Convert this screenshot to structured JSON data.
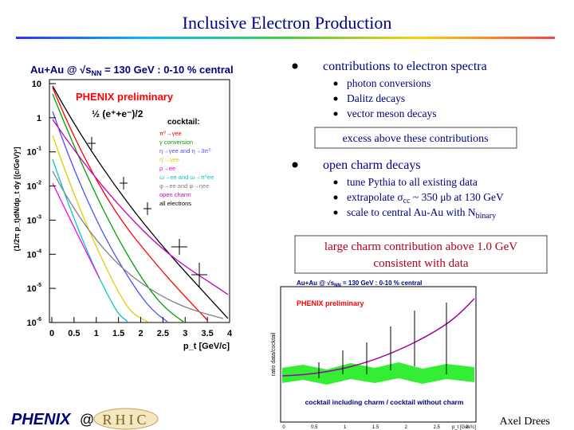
{
  "title": "Inclusive Electron Production",
  "left_plot": {
    "header": "Au+Au @ √s",
    "header_sub": "NN",
    "header_rest": " = 130 GeV : 0-10 % central",
    "label": "PHENIX preliminary",
    "data_label": "½ (e⁺+e⁻)/2",
    "cocktail_title": "cocktail:",
    "legend": [
      {
        "text": "π⁰→γee",
        "color": "#ff0000"
      },
      {
        "text": "γ conversion",
        "color": "#00a000"
      },
      {
        "text": "η→γee and η→3π⁰",
        "color": "#5050ff"
      },
      {
        "text": "η′→γee",
        "color": "#e0d000"
      },
      {
        "text": "ρ→ee",
        "color": "#ff00ff"
      },
      {
        "text": "ω→ee and ω→π⁰ee",
        "color": "#00c8c8"
      },
      {
        "text": "φ→ee and φ→ηee",
        "color": "#808080"
      },
      {
        "text": "open charm",
        "color": "#c000c0"
      },
      {
        "text": "all electrons",
        "color": "#000000"
      }
    ],
    "y_axis_label": "(1/2π p_t)dN/dp_t dy [(c/GeV)²]",
    "x_axis_label": "p_t [GeV/c]",
    "yticks": [
      {
        "text": "10",
        "sup": ""
      },
      {
        "text": "1",
        "sup": ""
      },
      {
        "text": "10",
        "sup": "-1"
      },
      {
        "text": "10",
        "sup": "-2"
      },
      {
        "text": "10",
        "sup": "-3"
      },
      {
        "text": "10",
        "sup": "-4"
      },
      {
        "text": "10",
        "sup": "-5"
      },
      {
        "text": "10",
        "sup": "-6"
      }
    ],
    "xticks": [
      "0",
      "0.5",
      "1",
      "1.5",
      "2",
      "2.5",
      "3",
      "3.5",
      "4"
    ]
  },
  "bullets": [
    {
      "text": "contributions to electron spectra",
      "items": [
        [
          {
            "t": "photon conversions"
          }
        ],
        [
          {
            "t": "Dalitz decays"
          }
        ],
        [
          {
            "t": "vector meson decays"
          }
        ]
      ]
    },
    {
      "text": "open charm decays",
      "items": [
        [
          {
            "t": "tune Pythia to all existing data"
          }
        ],
        [
          {
            "t": "extrapolate σ"
          },
          {
            "t": "cc",
            "sub": true
          },
          {
            "t": " ~ 350 μb at 130 GeV"
          }
        ],
        [
          {
            "t": "scale to central Au-Au with N"
          },
          {
            "t": "binary",
            "sub": true
          }
        ]
      ]
    }
  ],
  "box_note": "excess above these contributions",
  "conclusion": [
    "large charm contribution above 1.0 GeV",
    "consistent with data"
  ],
  "right_plot": {
    "header": "Au+Au @ √s",
    "header_sub": "NN",
    "header_rest": " = 130 GeV : 0-10 % central",
    "label": "PHENIX preliminary",
    "caption": "cocktail including charm / cocktail without charm",
    "y_axis_label": "ratio data/cocktail",
    "x_axis_label": "p_t [GeV/c]",
    "xticks": [
      "0",
      "0.5",
      "1",
      "1.5",
      "2",
      "2.5",
      "3"
    ]
  },
  "footer": {
    "logo": "PHENIX",
    "at": "@",
    "rhic": "RHIC",
    "author": "Axel Drees"
  }
}
